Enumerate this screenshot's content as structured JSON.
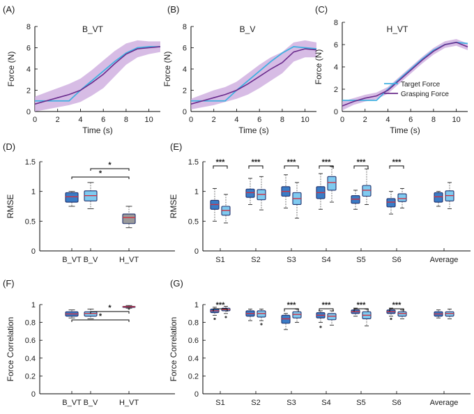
{
  "colors": {
    "target": "#3fb0e0",
    "grasp": "#6a2b8c",
    "band": "#c9a6dc",
    "boxDark": "#3a7cc6",
    "boxLight": "#7fcaf0",
    "gray": "#9a9a9a",
    "median": "#d0303f"
  },
  "panels": {
    "A": {
      "label": "(A)",
      "title": "B_VT"
    },
    "B": {
      "label": "(B)",
      "title": "B_V"
    },
    "C": {
      "label": "(C)",
      "title": "H_VT"
    },
    "D": {
      "label": "(D)"
    },
    "E": {
      "label": "(E)"
    },
    "F": {
      "label": "(F)"
    },
    "G": {
      "label": "(G)"
    }
  },
  "legend": {
    "target": "Target Force",
    "grasp": "Grasping Force"
  },
  "chart_data": [
    {
      "id": "A",
      "type": "line",
      "title": "B_VT",
      "xlabel": "Time (s)",
      "ylabel": "Force (N)",
      "xlim": [
        0,
        11
      ],
      "ylim": [
        0,
        8
      ],
      "xticks": [
        "0",
        "2",
        "4",
        "6",
        "8",
        "10"
      ],
      "yticks": [
        "0",
        "2",
        "4",
        "6",
        "8"
      ],
      "series": [
        {
          "name": "Target Force",
          "x": [
            0,
            3,
            3.5,
            4,
            5,
            6,
            7,
            8,
            9,
            10,
            11
          ],
          "y": [
            1.0,
            1.0,
            1.5,
            2.0,
            2.9,
            3.8,
            4.7,
            5.5,
            6.0,
            6.1,
            6.1
          ]
        },
        {
          "name": "Grasping Force",
          "x": [
            0,
            1,
            2,
            3,
            4,
            5,
            6,
            7,
            8,
            9,
            10,
            11
          ],
          "y": [
            0.7,
            1.0,
            1.3,
            1.6,
            2.0,
            2.7,
            3.5,
            4.5,
            5.4,
            5.9,
            6.0,
            6.1
          ],
          "band": [
            0.7,
            0.8,
            0.9,
            1.0,
            1.1,
            1.2,
            1.3,
            1.2,
            1.0,
            0.8,
            0.6,
            0.5
          ]
        }
      ]
    },
    {
      "id": "B",
      "type": "line",
      "title": "B_V",
      "xlabel": "Time (s)",
      "ylabel": "Force (N)",
      "xlim": [
        0,
        11
      ],
      "ylim": [
        0,
        8
      ],
      "xticks": [
        "0",
        "2",
        "4",
        "6",
        "8",
        "10"
      ],
      "yticks": [
        "0",
        "2",
        "4",
        "6",
        "8"
      ],
      "series": [
        {
          "name": "Target Force",
          "x": [
            0,
            3,
            3.5,
            4,
            5,
            6,
            7,
            8,
            9,
            10,
            11
          ],
          "y": [
            1.0,
            1.0,
            1.5,
            2.0,
            2.9,
            3.8,
            4.7,
            5.5,
            6.1,
            6.0,
            5.9
          ]
        },
        {
          "name": "Grasping Force",
          "x": [
            0,
            1,
            2,
            3,
            4,
            5,
            6,
            7,
            8,
            9,
            10,
            11
          ],
          "y": [
            0.7,
            1.0,
            1.3,
            1.6,
            2.0,
            2.6,
            3.3,
            4.0,
            4.6,
            5.6,
            5.9,
            5.8
          ],
          "band": [
            0.5,
            0.6,
            0.7,
            0.7,
            0.8,
            1.0,
            1.1,
            1.1,
            1.0,
            0.9,
            0.8,
            0.7
          ]
        }
      ]
    },
    {
      "id": "C",
      "type": "line",
      "title": "H_VT",
      "xlabel": "Time (s)",
      "ylabel": "Force (N)",
      "xlim": [
        0,
        11
      ],
      "ylim": [
        0,
        8
      ],
      "xticks": [
        "0",
        "2",
        "4",
        "6",
        "8",
        "10"
      ],
      "yticks": [
        "0",
        "2",
        "4",
        "6",
        "8"
      ],
      "legend": [
        "Target Force",
        "Grasping Force"
      ],
      "series": [
        {
          "name": "Target Force",
          "x": [
            0,
            3,
            3.5,
            4,
            5,
            6,
            7,
            8,
            9,
            10,
            11
          ],
          "y": [
            1.0,
            1.0,
            1.5,
            2.0,
            2.9,
            3.8,
            4.7,
            5.5,
            6.0,
            6.2,
            6.1
          ]
        },
        {
          "name": "Grasping Force",
          "x": [
            0,
            1,
            2,
            3,
            4,
            5,
            6,
            7,
            8,
            9,
            10,
            11
          ],
          "y": [
            0.5,
            0.9,
            1.2,
            1.4,
            1.9,
            2.8,
            3.7,
            4.6,
            5.4,
            6.0,
            6.2,
            5.8
          ],
          "band": [
            0.4,
            0.3,
            0.3,
            0.3,
            0.3,
            0.3,
            0.3,
            0.3,
            0.3,
            0.3,
            0.3,
            0.3
          ]
        }
      ]
    },
    {
      "id": "D",
      "type": "box",
      "ylabel": "RMSE",
      "ylim": [
        0,
        1.5
      ],
      "yticks": [
        "0",
        "0.5",
        "1",
        "1.5"
      ],
      "categories": [
        "B_VT",
        "B_V",
        "H_VT"
      ],
      "boxes": [
        {
          "cat": "B_VT",
          "color": "dark",
          "min": 0.75,
          "q1": 0.82,
          "median": 0.91,
          "q3": 0.98,
          "max": 1.0
        },
        {
          "cat": "B_V",
          "color": "light",
          "min": 0.71,
          "q1": 0.84,
          "median": 0.93,
          "q3": 1.01,
          "max": 1.15
        },
        {
          "cat": "H_VT",
          "color": "gray",
          "min": 0.39,
          "q1": 0.46,
          "median": 0.56,
          "q3": 0.62,
          "max": 0.75
        }
      ],
      "significance": [
        {
          "from": "B_V",
          "to": "H_VT",
          "label": "*"
        },
        {
          "from": "B_VT",
          "to": "H_VT",
          "label": "*"
        }
      ]
    },
    {
      "id": "E",
      "type": "box",
      "ylabel": "RMSE",
      "ylim": [
        0,
        1.5
      ],
      "yticks": [
        "0",
        "0.5",
        "1",
        "1.5"
      ],
      "categories": [
        "S1",
        "S2",
        "S3",
        "S4",
        "S5",
        "S6",
        "Average"
      ],
      "boxes": [
        {
          "cat": "S1",
          "color": "dark",
          "min": 0.5,
          "q1": 0.7,
          "median": 0.78,
          "q3": 0.85,
          "max": 1.05
        },
        {
          "cat": "S1",
          "color": "light",
          "min": 0.47,
          "q1": 0.6,
          "median": 0.68,
          "q3": 0.75,
          "max": 0.95
        },
        {
          "cat": "S2",
          "color": "dark",
          "min": 0.78,
          "q1": 0.9,
          "median": 0.98,
          "q3": 1.04,
          "max": 1.22
        },
        {
          "cat": "S2",
          "color": "light",
          "min": 0.69,
          "q1": 0.86,
          "median": 0.95,
          "q3": 1.03,
          "max": 1.25
        },
        {
          "cat": "S3",
          "color": "dark",
          "min": 0.72,
          "q1": 0.92,
          "median": 1.0,
          "q3": 1.08,
          "max": 1.28
        },
        {
          "cat": "S3",
          "color": "light",
          "min": 0.55,
          "q1": 0.78,
          "median": 0.88,
          "q3": 0.98,
          "max": 1.15
        },
        {
          "cat": "S4",
          "color": "dark",
          "min": 0.7,
          "q1": 0.88,
          "median": 0.98,
          "q3": 1.08,
          "max": 1.3
        },
        {
          "cat": "S4",
          "color": "light",
          "min": 0.82,
          "q1": 1.02,
          "median": 1.15,
          "q3": 1.25,
          "max": 1.42
        },
        {
          "cat": "S5",
          "color": "dark",
          "min": 0.7,
          "q1": 0.8,
          "median": 0.87,
          "q3": 0.93,
          "max": 1.02
        },
        {
          "cat": "S5",
          "color": "light",
          "min": 0.78,
          "q1": 0.92,
          "median": 1.02,
          "q3": 1.1,
          "max": 1.38
        },
        {
          "cat": "S6",
          "color": "dark",
          "min": 0.62,
          "q1": 0.74,
          "median": 0.82,
          "q3": 0.88,
          "max": 1.0
        },
        {
          "cat": "S6",
          "color": "light",
          "min": 0.72,
          "q1": 0.83,
          "median": 0.88,
          "q3": 0.96,
          "max": 1.05
        },
        {
          "cat": "Average",
          "color": "dark",
          "min": 0.75,
          "q1": 0.82,
          "median": 0.91,
          "q3": 0.98,
          "max": 1.0
        },
        {
          "cat": "Average",
          "color": "light",
          "min": 0.71,
          "q1": 0.84,
          "median": 0.93,
          "q3": 1.01,
          "max": 1.15
        }
      ],
      "significance": [
        {
          "cat": "S1",
          "label": "***"
        },
        {
          "cat": "S2",
          "label": "***"
        },
        {
          "cat": "S3",
          "label": "***"
        },
        {
          "cat": "S4",
          "label": "***"
        },
        {
          "cat": "S5",
          "label": "***"
        },
        {
          "cat": "S6",
          "label": "***"
        }
      ]
    },
    {
      "id": "F",
      "type": "box",
      "ylabel": "Force Correlation",
      "ylim": [
        0,
        1
      ],
      "yticks": [
        "0",
        "0.2",
        "0.4",
        "0.6",
        "0.8",
        "1"
      ],
      "categories": [
        "B_VT",
        "B_V",
        "H_VT"
      ],
      "boxes": [
        {
          "cat": "B_VT",
          "color": "dark",
          "min": 0.85,
          "q1": 0.87,
          "median": 0.895,
          "q3": 0.92,
          "max": 0.94
        },
        {
          "cat": "B_V",
          "color": "light",
          "min": 0.84,
          "q1": 0.87,
          "median": 0.9,
          "q3": 0.92,
          "max": 0.95
        },
        {
          "cat": "H_VT",
          "color": "gray",
          "min": 0.96,
          "q1": 0.97,
          "median": 0.975,
          "q3": 0.98,
          "max": 0.99,
          "outliers": [
            0.955
          ]
        }
      ],
      "significance": [
        {
          "from": "B_V",
          "to": "H_VT",
          "label": "*"
        },
        {
          "from": "B_VT",
          "to": "H_VT",
          "label": "*"
        }
      ]
    },
    {
      "id": "G",
      "type": "box",
      "ylabel": "Force Correlation",
      "ylim": [
        0,
        1
      ],
      "yticks": [
        "0",
        "0.2",
        "0.4",
        "0.6",
        "0.8",
        "1"
      ],
      "categories": [
        "S1",
        "S2",
        "S3",
        "S4",
        "S5",
        "S6",
        "Average"
      ],
      "boxes": [
        {
          "cat": "S1",
          "color": "dark",
          "min": 0.88,
          "q1": 0.91,
          "median": 0.93,
          "q3": 0.95,
          "max": 0.97,
          "outliers": [
            0.84
          ]
        },
        {
          "cat": "S1",
          "color": "light",
          "min": 0.9,
          "q1": 0.93,
          "median": 0.945,
          "q3": 0.96,
          "max": 0.98,
          "outliers": [
            0.86
          ]
        },
        {
          "cat": "S2",
          "color": "dark",
          "min": 0.82,
          "q1": 0.87,
          "median": 0.9,
          "q3": 0.93,
          "max": 0.95
        },
        {
          "cat": "S2",
          "color": "light",
          "min": 0.82,
          "q1": 0.86,
          "median": 0.9,
          "q3": 0.93,
          "max": 0.95,
          "outliers": [
            0.78
          ]
        },
        {
          "cat": "S3",
          "color": "dark",
          "min": 0.72,
          "q1": 0.79,
          "median": 0.84,
          "q3": 0.88,
          "max": 0.9
        },
        {
          "cat": "S3",
          "color": "light",
          "min": 0.8,
          "q1": 0.85,
          "median": 0.89,
          "q3": 0.92,
          "max": 0.95
        },
        {
          "cat": "S4",
          "color": "dark",
          "min": 0.8,
          "q1": 0.85,
          "median": 0.88,
          "q3": 0.91,
          "max": 0.93,
          "outliers": [
            0.75
          ]
        },
        {
          "cat": "S4",
          "color": "light",
          "min": 0.77,
          "q1": 0.83,
          "median": 0.87,
          "q3": 0.9,
          "max": 0.93
        },
        {
          "cat": "S5",
          "color": "dark",
          "min": 0.87,
          "q1": 0.9,
          "median": 0.92,
          "q3": 0.94,
          "max": 0.96
        },
        {
          "cat": "S5",
          "color": "light",
          "min": 0.76,
          "q1": 0.84,
          "median": 0.88,
          "q3": 0.92,
          "max": 0.95
        },
        {
          "cat": "S6",
          "color": "dark",
          "min": 0.87,
          "q1": 0.9,
          "median": 0.92,
          "q3": 0.94,
          "max": 0.96,
          "outliers": [
            0.84
          ]
        },
        {
          "cat": "S6",
          "color": "light",
          "min": 0.84,
          "q1": 0.87,
          "median": 0.9,
          "q3": 0.92,
          "max": 0.94
        },
        {
          "cat": "Average",
          "color": "dark",
          "min": 0.85,
          "q1": 0.87,
          "median": 0.895,
          "q3": 0.92,
          "max": 0.94
        },
        {
          "cat": "Average",
          "color": "light",
          "min": 0.84,
          "q1": 0.87,
          "median": 0.9,
          "q3": 0.92,
          "max": 0.95
        }
      ],
      "significance": [
        {
          "cat": "S1",
          "label": "***"
        },
        {
          "cat": "S3",
          "label": "***"
        },
        {
          "cat": "S4",
          "label": "***"
        },
        {
          "cat": "S5",
          "label": "***"
        },
        {
          "cat": "S6",
          "label": "***"
        }
      ]
    }
  ]
}
